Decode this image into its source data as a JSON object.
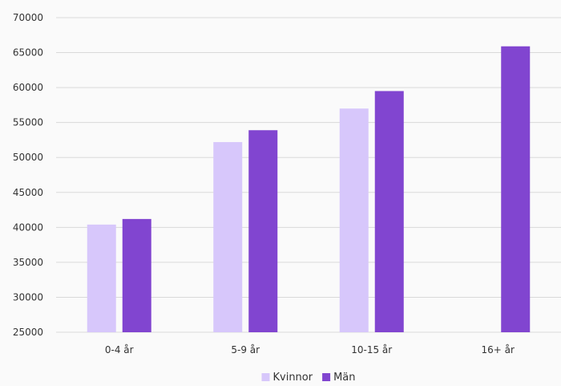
{
  "chart_data": {
    "type": "bar",
    "title": "",
    "xlabel": "",
    "ylabel": "",
    "categories": [
      "0-4 år",
      "5-9 år",
      "10-15 år",
      "16+ år"
    ],
    "series": [
      {
        "name": "Kvinnor",
        "color": "#d7c7fb",
        "values": [
          40400,
          52200,
          57000,
          null
        ]
      },
      {
        "name": "Män",
        "color": "#8145d0",
        "values": [
          41200,
          53900,
          59500,
          65900
        ]
      }
    ],
    "ylim": [
      25000,
      70000
    ],
    "yticks": [
      25000,
      30000,
      35000,
      40000,
      45000,
      50000,
      55000,
      60000,
      65000,
      70000
    ],
    "grid": true,
    "legend": "bottom-center"
  }
}
